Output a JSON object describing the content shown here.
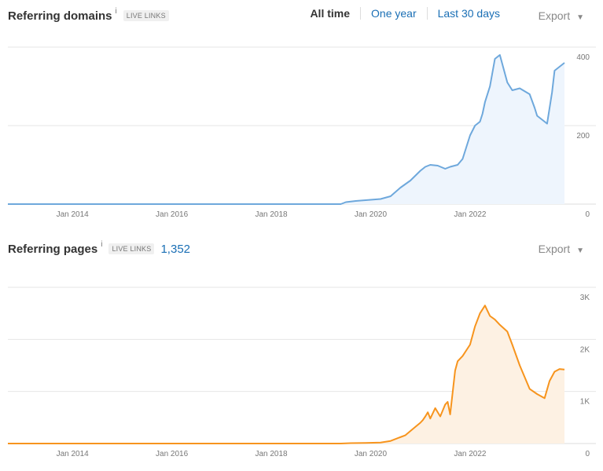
{
  "domains_panel": {
    "title": "Referring domains",
    "info": "i",
    "badge": "LIVE LINKS",
    "range": {
      "all_time": "All time",
      "one_year": "One year",
      "last_30_days": "Last 30 days"
    },
    "export": "Export"
  },
  "pages_panel": {
    "title": "Referring pages",
    "info": "i",
    "badge": "LIVE LINKS",
    "count": "1,352",
    "export": "Export"
  },
  "chart_data": [
    {
      "type": "area",
      "color": "#6ea8dc",
      "fill": "#eef5fd",
      "xlim": [
        2012.7,
        2023.9
      ],
      "ylim": [
        0,
        400
      ],
      "x_ticks": [
        2014,
        2016,
        2018,
        2020,
        2022
      ],
      "x_tick_labels": [
        "Jan 2014",
        "Jan 2016",
        "Jan 2018",
        "Jan 2020",
        "Jan 2022"
      ],
      "y_ticks": [
        0,
        200,
        400
      ],
      "y_tick_labels": [
        "0",
        "200",
        "400"
      ],
      "x": [
        2012.7,
        2019.4,
        2019.5,
        2019.7,
        2019.9,
        2020.2,
        2020.4,
        2020.6,
        2020.8,
        2021.0,
        2021.1,
        2021.2,
        2021.35,
        2021.5,
        2021.6,
        2021.75,
        2021.85,
        2022.0,
        2022.1,
        2022.2,
        2022.25,
        2022.3,
        2022.4,
        2022.5,
        2022.6,
        2022.75,
        2022.85,
        2023.0,
        2023.2,
        2023.3,
        2023.35,
        2023.45,
        2023.55,
        2023.65,
        2023.7,
        2023.9
      ],
      "values": [
        0,
        0,
        5,
        8,
        10,
        13,
        20,
        42,
        60,
        85,
        95,
        100,
        98,
        90,
        95,
        100,
        115,
        175,
        200,
        210,
        230,
        260,
        300,
        370,
        380,
        310,
        290,
        295,
        280,
        245,
        225,
        215,
        205,
        285,
        340,
        360
      ]
    },
    {
      "type": "area",
      "color": "#f7941d",
      "fill": "#fdf1e3",
      "xlim": [
        2012.7,
        2023.9
      ],
      "ylim": [
        0,
        3000
      ],
      "x_ticks": [
        2014,
        2016,
        2018,
        2020,
        2022
      ],
      "x_tick_labels": [
        "Jan 2014",
        "Jan 2016",
        "Jan 2018",
        "Jan 2020",
        "Jan 2022"
      ],
      "y_ticks": [
        0,
        1000,
        2000,
        3000
      ],
      "y_tick_labels": [
        "0",
        "1K",
        "2K",
        "3K"
      ],
      "x": [
        2012.7,
        2019.4,
        2019.6,
        2019.9,
        2020.2,
        2020.4,
        2020.7,
        2020.85,
        2021.0,
        2021.05,
        2021.1,
        2021.15,
        2021.2,
        2021.3,
        2021.4,
        2021.5,
        2021.55,
        2021.6,
        2021.7,
        2021.75,
        2021.85,
        2022.0,
        2022.1,
        2022.2,
        2022.3,
        2022.35,
        2022.4,
        2022.5,
        2022.6,
        2022.75,
        2022.85,
        2023.0,
        2023.2,
        2023.35,
        2023.5,
        2023.6,
        2023.7,
        2023.8,
        2023.9
      ],
      "values": [
        0,
        0,
        8,
        12,
        20,
        50,
        160,
        280,
        400,
        450,
        520,
        600,
        480,
        680,
        520,
        750,
        800,
        560,
        1400,
        1580,
        1680,
        1900,
        2250,
        2500,
        2650,
        2550,
        2450,
        2380,
        2280,
        2150,
        1900,
        1500,
        1050,
        950,
        870,
        1200,
        1380,
        1430,
        1420
      ]
    }
  ]
}
